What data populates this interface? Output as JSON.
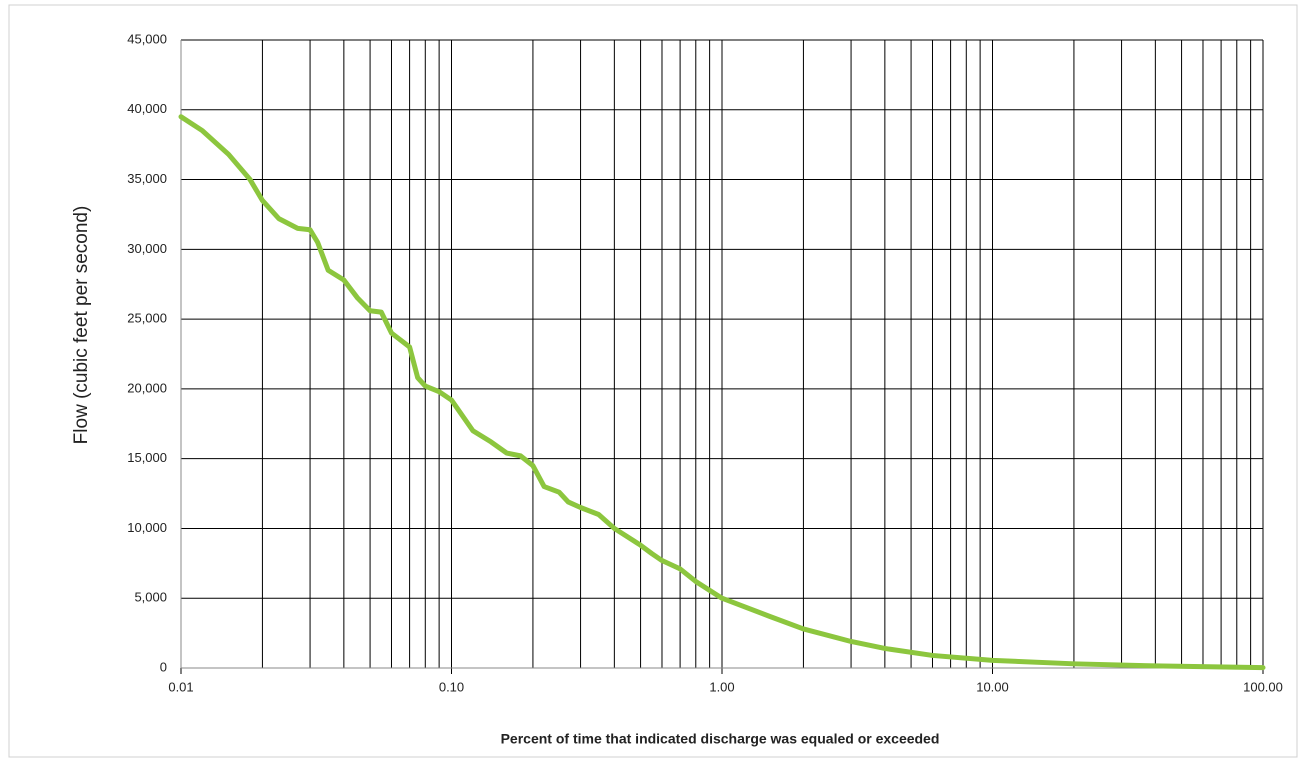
{
  "chart_data": {
    "type": "line",
    "xlabel": "Percent of time that indicated discharge was equaled or exceeded",
    "ylabel": "Flow (cubic feet per second)",
    "xscale": "log",
    "grid": true,
    "xlim": [
      0.01,
      100
    ],
    "ylim": [
      0,
      45000
    ],
    "xticks": [
      0.01,
      {
        "value": 0.1,
        "label": "0.10"
      },
      {
        "value": 1,
        "label": "1.00"
      },
      {
        "value": 10,
        "label": "10.00"
      },
      {
        "value": 100,
        "label": "100.00"
      }
    ],
    "xgrid": [
      0.02,
      0.03,
      0.04,
      0.05,
      0.06,
      0.07,
      0.08,
      0.09,
      0.2,
      0.3,
      0.4,
      0.5,
      0.6,
      0.7,
      0.8,
      0.9,
      2,
      3,
      4,
      5,
      6,
      7,
      8,
      9,
      20,
      30,
      40,
      50,
      60,
      70,
      80,
      90
    ],
    "yticks": [
      0,
      {
        "value": 5000,
        "label": "5,000"
      },
      {
        "value": 10000,
        "label": "10,000"
      },
      {
        "value": 15000,
        "label": "15,000"
      },
      {
        "value": 20000,
        "label": "20,000"
      },
      {
        "value": 25000,
        "label": "25,000"
      },
      {
        "value": 30000,
        "label": "30,000"
      },
      {
        "value": 35000,
        "label": "35,000"
      },
      {
        "value": 40000,
        "label": "40,000"
      },
      {
        "value": 45000,
        "label": "45,000"
      }
    ],
    "series": [
      {
        "color": "#8cc63e",
        "x": [
          0.01,
          0.012,
          0.015,
          0.018,
          0.02,
          0.023,
          0.027,
          0.03,
          0.032,
          0.035,
          0.04,
          0.045,
          0.05,
          0.055,
          0.06,
          0.07,
          0.075,
          0.08,
          0.09,
          0.1,
          0.12,
          0.14,
          0.16,
          0.18,
          0.2,
          0.22,
          0.25,
          0.27,
          0.3,
          0.35,
          0.4,
          0.5,
          0.55,
          0.6,
          0.7,
          0.8,
          1,
          1.5,
          2,
          3,
          4,
          6,
          10,
          20,
          40,
          100
        ],
        "values": [
          39500,
          38500,
          36800,
          35000,
          33500,
          32200,
          31500,
          31400,
          30500,
          28500,
          27800,
          26500,
          25600,
          25500,
          24000,
          23000,
          20800,
          20200,
          19800,
          19200,
          17000,
          16200,
          15400,
          15200,
          14500,
          13000,
          12600,
          11900,
          11500,
          11000,
          10000,
          8800,
          8200,
          7700,
          7100,
          6200,
          5000,
          3700,
          2800,
          1900,
          1400,
          900,
          550,
          300,
          150,
          30
        ]
      }
    ]
  }
}
